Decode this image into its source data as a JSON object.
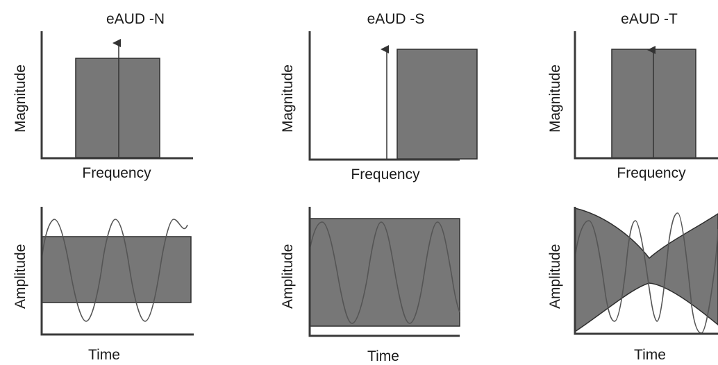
{
  "columns": [
    {
      "title": "eAUD -N",
      "freq_xlabel": "Frequency",
      "freq_ylabel": "Magnitude",
      "time_xlabel": "Time",
      "time_ylabel": "Amplitude"
    },
    {
      "title": "eAUD -S",
      "freq_xlabel": "Frequency",
      "freq_ylabel": "Magnitude",
      "time_xlabel": "Time",
      "time_ylabel": "Amplitude"
    },
    {
      "title": "eAUD -T",
      "freq_xlabel": "Frequency",
      "freq_ylabel": "Magnitude",
      "time_xlabel": "Time",
      "time_ylabel": "Amplitude"
    }
  ],
  "colors": {
    "block_fill": "#777777",
    "axis": "#3a3a3a",
    "wave": "#555555"
  }
}
